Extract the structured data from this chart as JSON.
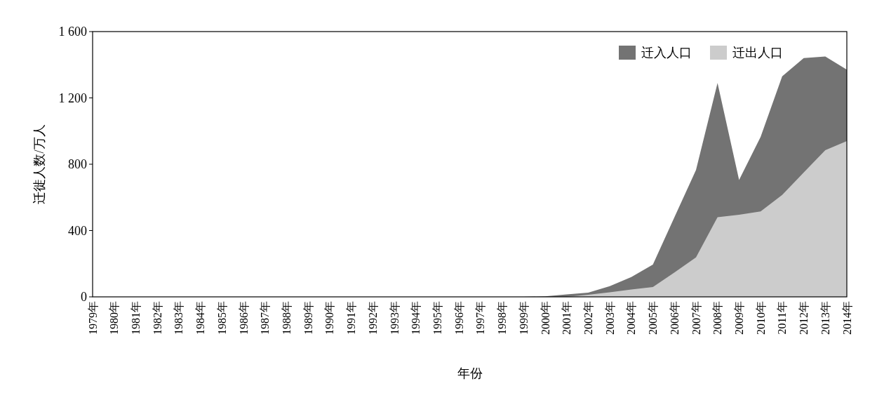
{
  "chart_data": {
    "type": "area",
    "xlabel": "年份",
    "ylabel": "迁徙人数/万人",
    "categories": [
      "1979年",
      "1980年",
      "1981年",
      "1982年",
      "1983年",
      "1984年",
      "1985年",
      "1986年",
      "1987年",
      "1988年",
      "1989年",
      "1990年",
      "1991年",
      "1992年",
      "1993年",
      "1994年",
      "1995年",
      "1996年",
      "1997年",
      "1998年",
      "1999年",
      "2000年",
      "2001年",
      "2002年",
      "2003年",
      "2004年",
      "2005年",
      "2006年",
      "2007年",
      "2008年",
      "2009年",
      "2010年",
      "2011年",
      "2012年",
      "2013年",
      "2014年"
    ],
    "series": [
      {
        "name": "迁入人口",
        "color": "#737373",
        "values": [
          0,
          0,
          0,
          0,
          0,
          0,
          0,
          0,
          0,
          0,
          0,
          0,
          0,
          0,
          0,
          0,
          0,
          0,
          0,
          0,
          0,
          3,
          15,
          25,
          65,
          120,
          195,
          480,
          765,
          1290,
          705,
          965,
          1330,
          1440,
          1450,
          1370
        ]
      },
      {
        "name": "迁出人口",
        "color": "#cccccc",
        "values": [
          0,
          0,
          0,
          0,
          0,
          0,
          0,
          0,
          0,
          0,
          0,
          0,
          0,
          0,
          0,
          0,
          0,
          0,
          0,
          0,
          0,
          0,
          0,
          13,
          27,
          44,
          59,
          147,
          238,
          480,
          495,
          515,
          615,
          750,
          885,
          940
        ]
      }
    ],
    "ylim": [
      0,
      1600
    ],
    "yticks": [
      0,
      {
        "value": 400,
        "label": "400"
      },
      {
        "value": 800,
        "label": "800"
      },
      {
        "value": 1200,
        "label": "1 200"
      },
      {
        "value": 1600,
        "label": "1 600"
      }
    ],
    "grid": false,
    "legend": "top right"
  }
}
